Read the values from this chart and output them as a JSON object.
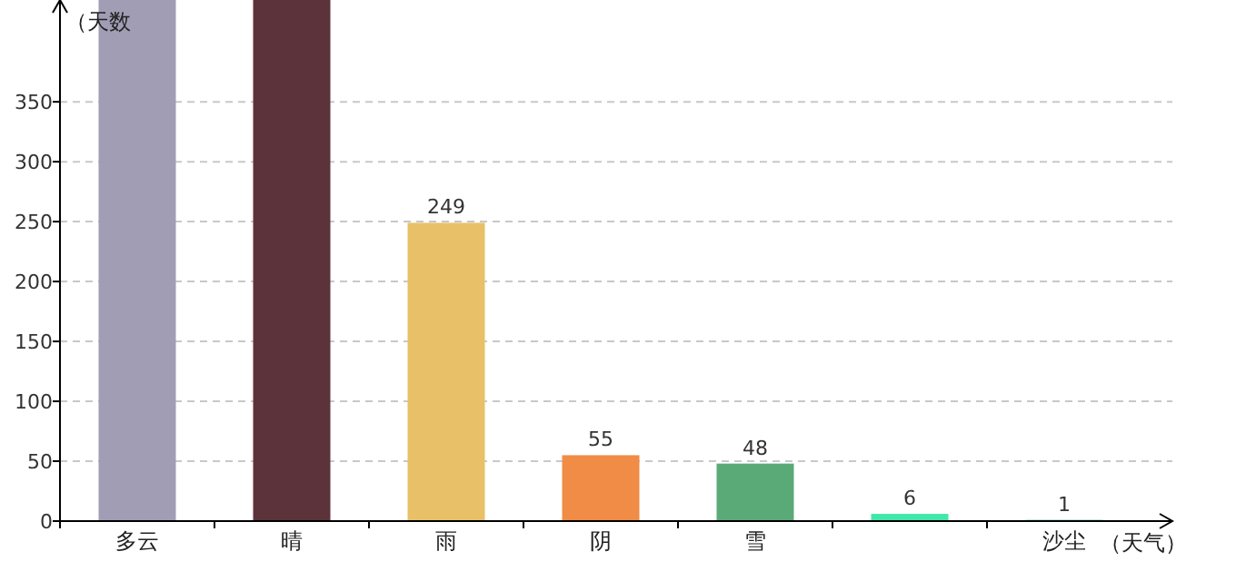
{
  "chart_data": {
    "type": "bar",
    "xlabel": "（天气）",
    "ylabel": "（天数",
    "categories": [
      "多云",
      "晴",
      "雨",
      "阴",
      "雪",
      null,
      "沙尘"
    ],
    "values": [
      435,
      435,
      249,
      55,
      48,
      6,
      1
    ],
    "value_labels": [
      null,
      null,
      "249",
      "55",
      "48",
      "6",
      "1"
    ],
    "colors": [
      "#a09db5",
      "#5c333b",
      "#e8c068",
      "#f08c46",
      "#5aaa78",
      "#3ee8a8",
      "#2ab8a8"
    ],
    "ylim": [
      0,
      435
    ],
    "yticks": [
      0,
      50,
      100,
      150,
      200,
      250,
      300,
      350
    ],
    "grid": "y"
  }
}
